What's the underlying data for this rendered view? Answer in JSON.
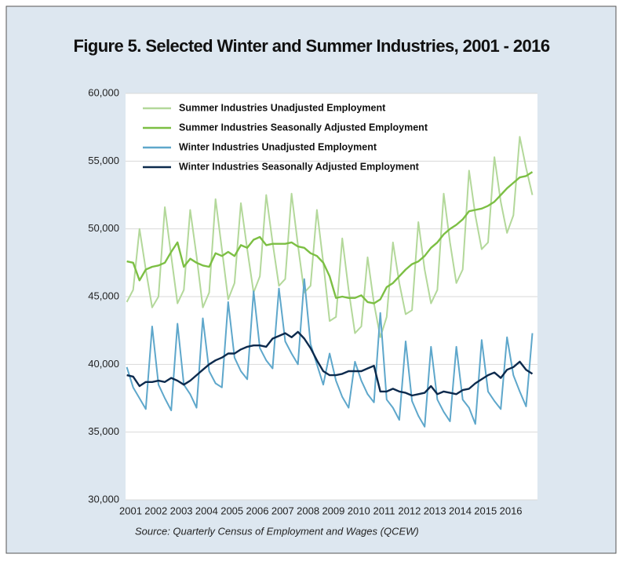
{
  "chart_data": {
    "type": "line",
    "title": "Figure 5. Selected Winter and Summer Industries, 2001 - 2016",
    "source": "Source: Quarterly Census of Employment and Wages (QCEW)",
    "x": [
      2000.85,
      2001.1,
      2001.35,
      2001.6,
      2001.85,
      2002.1,
      2002.35,
      2002.6,
      2002.85,
      2003.1,
      2003.35,
      2003.6,
      2003.85,
      2004.1,
      2004.35,
      2004.6,
      2004.85,
      2005.1,
      2005.35,
      2005.6,
      2005.85,
      2006.1,
      2006.35,
      2006.6,
      2006.85,
      2007.1,
      2007.35,
      2007.6,
      2007.85,
      2008.1,
      2008.35,
      2008.6,
      2008.85,
      2009.1,
      2009.35,
      2009.6,
      2009.85,
      2010.1,
      2010.35,
      2010.6,
      2010.85,
      2011.1,
      2011.35,
      2011.6,
      2011.85,
      2012.1,
      2012.35,
      2012.6,
      2012.85,
      2013.1,
      2013.35,
      2013.6,
      2013.85,
      2014.1,
      2014.35,
      2014.6,
      2014.85,
      2015.1,
      2015.35,
      2015.6,
      2015.85,
      2016.1,
      2016.35,
      2016.6,
      2016.85
    ],
    "xlim": [
      2000.8,
      2017.05
    ],
    "xticks": [
      2001,
      2002,
      2003,
      2004,
      2005,
      2006,
      2007,
      2008,
      2009,
      2010,
      2011,
      2012,
      2013,
      2014,
      2015,
      2016
    ],
    "ylim": [
      30000,
      60000
    ],
    "yticks": [
      {
        "value": 30000,
        "label": "30,000"
      },
      {
        "value": 35000,
        "label": "35,000"
      },
      {
        "value": 40000,
        "label": "40,000"
      },
      {
        "value": 45000,
        "label": "45,000"
      },
      {
        "value": 50000,
        "label": "50,000"
      },
      {
        "value": 55000,
        "label": "55,000"
      },
      {
        "value": 60000,
        "label": "60,000"
      }
    ],
    "grid": true,
    "legend": "upper left",
    "series": [
      {
        "name": "Summer Industries  Unadjusted Employment",
        "color": "#b3d89a",
        "values": [
          44600,
          45500,
          50000,
          47000,
          44200,
          45000,
          51600,
          48000,
          44500,
          45500,
          51400,
          48000,
          44200,
          45300,
          52200,
          48500,
          44800,
          46000,
          51900,
          48500,
          45300,
          46500,
          52500,
          49000,
          45800,
          46300,
          52600,
          48800,
          45300,
          45800,
          51400,
          47500,
          43200,
          43500,
          49300,
          45500,
          42300,
          42800,
          47900,
          44500,
          42000,
          43500,
          49000,
          46000,
          43700,
          44000,
          50500,
          47000,
          44500,
          45500,
          52600,
          49000,
          46000,
          47000,
          54300,
          51000,
          48500,
          49000,
          55300,
          52000,
          49700,
          51000,
          56800,
          54500,
          52500
        ]
      },
      {
        "name": "Summer Industries Seasonally Adjusted Employment",
        "color": "#7cbf43",
        "values": [
          47600,
          47500,
          46200,
          47000,
          47200,
          47300,
          47500,
          48300,
          49000,
          47200,
          47800,
          47500,
          47300,
          47200,
          48200,
          48000,
          48300,
          48000,
          48800,
          48600,
          49200,
          49400,
          48800,
          48900,
          48900,
          48900,
          49000,
          48700,
          48600,
          48200,
          48000,
          47500,
          46500,
          44900,
          45000,
          44900,
          44900,
          45100,
          44600,
          44500,
          44800,
          45700,
          46000,
          46500,
          47000,
          47400,
          47600,
          48000,
          48600,
          49000,
          49600,
          50000,
          50300,
          50700,
          51300,
          51400,
          51500,
          51700,
          52000,
          52500,
          53000,
          53400,
          53800,
          53900,
          54200
        ]
      },
      {
        "name": "Winter Industries Unadjusted Employment",
        "color": "#5ea7cb",
        "values": [
          39800,
          38300,
          37500,
          36700,
          42800,
          38500,
          37500,
          36600,
          43000,
          38500,
          37800,
          36800,
          43400,
          39500,
          38600,
          38300,
          44600,
          40500,
          39500,
          38900,
          45400,
          41200,
          40300,
          39700,
          45600,
          41700,
          40800,
          40000,
          46300,
          41500,
          40000,
          38500,
          40800,
          38800,
          37600,
          36800,
          40200,
          38800,
          37800,
          37200,
          43800,
          37400,
          36800,
          35900,
          41700,
          37300,
          36200,
          35400,
          41300,
          37400,
          36500,
          35800,
          41300,
          37400,
          36800,
          35600,
          41800,
          38000,
          37300,
          36700,
          42000,
          39200,
          38000,
          36900,
          42300
        ]
      },
      {
        "name": "Winter Industries Seasonally Adjusted Employment",
        "color": "#0c2a4d",
        "values": [
          39200,
          39100,
          38400,
          38700,
          38700,
          38800,
          38700,
          39000,
          38800,
          38500,
          38800,
          39200,
          39600,
          40000,
          40300,
          40500,
          40800,
          40800,
          41100,
          41300,
          41400,
          41400,
          41300,
          41900,
          42100,
          42300,
          42000,
          42400,
          41900,
          41200,
          40300,
          39500,
          39200,
          39200,
          39300,
          39500,
          39500,
          39500,
          39700,
          39900,
          38000,
          38000,
          38200,
          38000,
          37900,
          37700,
          37800,
          37900,
          38400,
          37800,
          38000,
          37900,
          37800,
          38100,
          38200,
          38600,
          38900,
          39200,
          39400,
          39000,
          39600,
          39800,
          40200,
          39600,
          39300
        ]
      }
    ]
  }
}
